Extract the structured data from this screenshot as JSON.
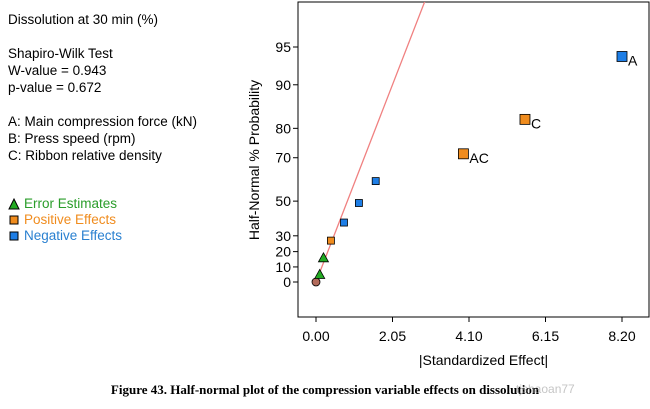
{
  "info": {
    "response": "Dissolution at 30 min (%)",
    "test_name": "Shapiro-Wilk Test",
    "w_value": "W-value = 0.943",
    "p_value": "p-value = 0.672",
    "factor_a": "A: Main compression force (kN)",
    "factor_b": "B: Press speed (rpm)",
    "factor_c": "C: Ribbon relative density"
  },
  "legend": {
    "error": "Error Estimates",
    "positive": "Positive Effects",
    "negative": "Negative Effects"
  },
  "colors": {
    "error": "#22aa22",
    "positive": "#f08c1e",
    "negative": "#1e7ee6",
    "origin": "#b26a5a",
    "fit_line": "#f08080",
    "legend_error_text": "#2a9d2a",
    "legend_positive_text": "#f08c1e",
    "legend_negative_text": "#2a80d0"
  },
  "caption": "Figure 43. Half-normal plot of the compression variable effects on dissolution",
  "watermark": "tjshaoan77",
  "chart_data": {
    "type": "scatter",
    "title": "",
    "xlabel": "|Standardized Effect|",
    "ylabel": "Half-Normal % Probability",
    "xlim": [
      -0.4,
      8.65
    ],
    "x_ticks": [
      0.0,
      2.05,
      4.1,
      6.15,
      8.2
    ],
    "x_tick_labels": [
      "0.00",
      "2.05",
      "4.10",
      "6.15",
      "8.20"
    ],
    "y_ticks": [
      0,
      10,
      20,
      30,
      50,
      70,
      80,
      90,
      95
    ],
    "y_tick_labels": [
      "0",
      "10",
      "20",
      "30",
      "50",
      "70",
      "80",
      "90",
      "95"
    ],
    "fit_line": {
      "x": [
        0.0,
        4.1
      ],
      "y": [
        0,
        99.9
      ]
    },
    "points": [
      {
        "x": 0.0,
        "y": 0,
        "group": "origin",
        "label": ""
      },
      {
        "x": 0.1,
        "y": 5,
        "group": "error",
        "label": ""
      },
      {
        "x": 0.2,
        "y": 16,
        "group": "error",
        "label": ""
      },
      {
        "x": 0.4,
        "y": 27,
        "group": "positive",
        "label": ""
      },
      {
        "x": 0.75,
        "y": 38,
        "group": "negative",
        "label": ""
      },
      {
        "x": 1.15,
        "y": 49,
        "group": "negative",
        "label": ""
      },
      {
        "x": 1.6,
        "y": 60,
        "group": "negative",
        "label": ""
      },
      {
        "x": 3.95,
        "y": 71.5,
        "group": "positive",
        "label": "AC"
      },
      {
        "x": 5.6,
        "y": 82.5,
        "group": "positive",
        "label": "C"
      },
      {
        "x": 8.2,
        "y": 94,
        "group": "negative",
        "label": "A"
      }
    ]
  }
}
